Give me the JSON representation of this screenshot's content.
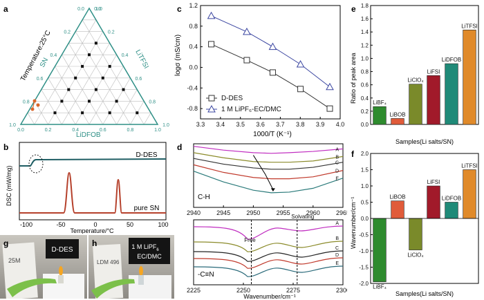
{
  "labels": {
    "a": "a",
    "b": "b",
    "c": "c",
    "d": "d",
    "e": "e",
    "f": "f",
    "g": "g",
    "h": "h"
  },
  "ternary": {
    "temp_title": "Temperature:25°C",
    "left_axis": "SN",
    "right_axis": "LiTFSI",
    "bottom_axis": "LiDFOB",
    "left_ticks": [
      "1.0",
      "0.8",
      "0.6",
      "0.4",
      "0.2",
      "0.0"
    ],
    "right_ticks": [
      "0.0",
      "0.2",
      "0.4",
      "0.6",
      "0.8",
      "1.0"
    ],
    "bottom_ticks": [
      "0.0",
      "0.2",
      "0.4",
      "0.6",
      "0.8",
      "1.0"
    ],
    "axis_color": "#2e8f86"
  },
  "dsc": {
    "ylabel": "DSC (mW/mg)",
    "xlabel": "Temperature/°C",
    "xticks": [
      "-100",
      "-50",
      "0",
      "50",
      "100"
    ],
    "series": [
      {
        "name": "D-DES",
        "color": "#1e5d63"
      },
      {
        "name": "pure SN",
        "color": "#b5402b"
      }
    ]
  },
  "paper_text": {
    "photo_g_label": "D-DES",
    "photo_h_label_line1": "1 M LiPF",
    "photo_h_label_sub": "6",
    "photo_h_label_line2": "EC/DMC",
    "photo_g_handwriting": "25M",
    "photo_h_handwriting": "LDM 496"
  },
  "chart_data": [
    {
      "id": "c",
      "type": "line",
      "xlabel": "1000/T (K⁻¹)",
      "ylabel": "logσ (mS/cm)",
      "xlim": [
        3.3,
        4.0
      ],
      "ylim": [
        -1.0,
        1.2
      ],
      "xticks": [
        "3.3",
        "3.4",
        "3.5",
        "3.6",
        "3.7",
        "3.8",
        "3.9",
        "4.0"
      ],
      "yticks": [
        "-0.8",
        "-0.4",
        "0.0",
        "0.4",
        "0.8",
        "1.2"
      ],
      "legend_position": "bottom-left",
      "series": [
        {
          "name": "D-DES",
          "marker": "square",
          "color": "#333333",
          "x": [
            3.354,
            3.532,
            3.662,
            3.801,
            3.948
          ],
          "y": [
            0.45,
            0.14,
            -0.1,
            -0.42,
            -0.8
          ]
        },
        {
          "name": "1 M LiPF₆-EC/DMC",
          "marker": "triangle",
          "color": "#3a45a0",
          "x": [
            3.354,
            3.532,
            3.662,
            3.801,
            3.948
          ],
          "y": [
            1.0,
            0.69,
            0.4,
            0.06,
            -0.38
          ]
        }
      ]
    },
    {
      "id": "d-top",
      "type": "line",
      "annotation": "C-H",
      "xlim": [
        2940,
        2965
      ],
      "xticks": [
        "2940",
        "2945",
        "2950",
        "2955",
        "2960",
        "2965"
      ],
      "series": [
        {
          "name": "A",
          "color": "#c02cc0",
          "x": [
            2940,
            2945,
            2950,
            2953,
            2956,
            2960,
            2965
          ],
          "y": [
            0.96,
            0.9,
            0.86,
            0.85,
            0.86,
            0.88,
            0.92
          ]
        },
        {
          "name": "B",
          "color": "#8b8b2a",
          "x": [
            2940,
            2945,
            2950,
            2953,
            2956,
            2960,
            2965
          ],
          "y": [
            0.86,
            0.78,
            0.72,
            0.71,
            0.71,
            0.73,
            0.8
          ]
        },
        {
          "name": "C",
          "color": "#333333",
          "x": [
            2940,
            2945,
            2950,
            2953,
            2956,
            2960,
            2965
          ],
          "y": [
            0.77,
            0.68,
            0.62,
            0.6,
            0.6,
            0.63,
            0.71
          ]
        },
        {
          "name": "D",
          "color": "#c0392b",
          "x": [
            2940,
            2945,
            2950,
            2953,
            2956,
            2960,
            2965
          ],
          "y": [
            0.67,
            0.55,
            0.47,
            0.45,
            0.45,
            0.48,
            0.58
          ]
        },
        {
          "name": "E",
          "color": "#2a7a7a",
          "x": [
            2940,
            2945,
            2950,
            2953,
            2956,
            2960,
            2965
          ],
          "y": [
            0.57,
            0.4,
            0.27,
            0.23,
            0.24,
            0.3,
            0.46
          ]
        }
      ]
    },
    {
      "id": "d-bottom",
      "type": "line",
      "annotation": "-C≡N",
      "xlabel": "Wavenumber/cm⁻¹",
      "xlim": [
        2225,
        2300
      ],
      "xticks": [
        "2225",
        "2250",
        "2275",
        "2300"
      ],
      "free_label": "Free",
      "solvating_label": "Solvating",
      "free_x": 2254,
      "solvating_x": 2277,
      "series": [
        {
          "name": "A",
          "color": "#c02cc0"
        },
        {
          "name": "B",
          "color": "#8b8b2a"
        },
        {
          "name": "C",
          "color": "#222222"
        },
        {
          "name": "D",
          "color": "#c0392b"
        },
        {
          "name": "E",
          "color": "#2a6a7a"
        }
      ]
    },
    {
      "id": "e",
      "type": "bar",
      "ylabel": "Ratio of peak area",
      "xlabel": "Samples(Li salts/SN)",
      "ylim": [
        0,
        1.8
      ],
      "yticks": [
        "0.0",
        "0.2",
        "0.4",
        "0.6",
        "0.8",
        "1.0",
        "1.2",
        "1.4",
        "1.6",
        "1.8"
      ],
      "categories": [
        "LiBF₄",
        "LiBOB",
        "LiClO₄",
        "LiFSI",
        "LiDFOB",
        "LiTFSI"
      ],
      "values": [
        0.27,
        0.09,
        0.61,
        0.74,
        0.92,
        1.43
      ],
      "colors": [
        "#2e8b2e",
        "#e05b3a",
        "#7a8a2a",
        "#a11a2a",
        "#1f8a78",
        "#e08a2a"
      ]
    },
    {
      "id": "f",
      "type": "bar",
      "ylabel": "Wavenumber/cm⁻¹",
      "xlabel": "Samples(Li salts/SN)",
      "ylim": [
        -2.0,
        2.0
      ],
      "yticks": [
        "-2.0",
        "-1.5",
        "-1.0",
        "-0.5",
        "0.0",
        "0.5",
        "1.0",
        "1.5",
        "2.0"
      ],
      "categories": [
        "LiBF₄",
        "LiBOB",
        "LiClO₄",
        "LiFSI",
        "LiDFOB",
        "LiTFSI"
      ],
      "values": [
        -1.95,
        0.54,
        -0.97,
        1.0,
        0.5,
        1.5
      ],
      "colors": [
        "#2e8b2e",
        "#e05b3a",
        "#7a8a2a",
        "#a11a2a",
        "#1f8a78",
        "#e08a2a"
      ]
    }
  ]
}
